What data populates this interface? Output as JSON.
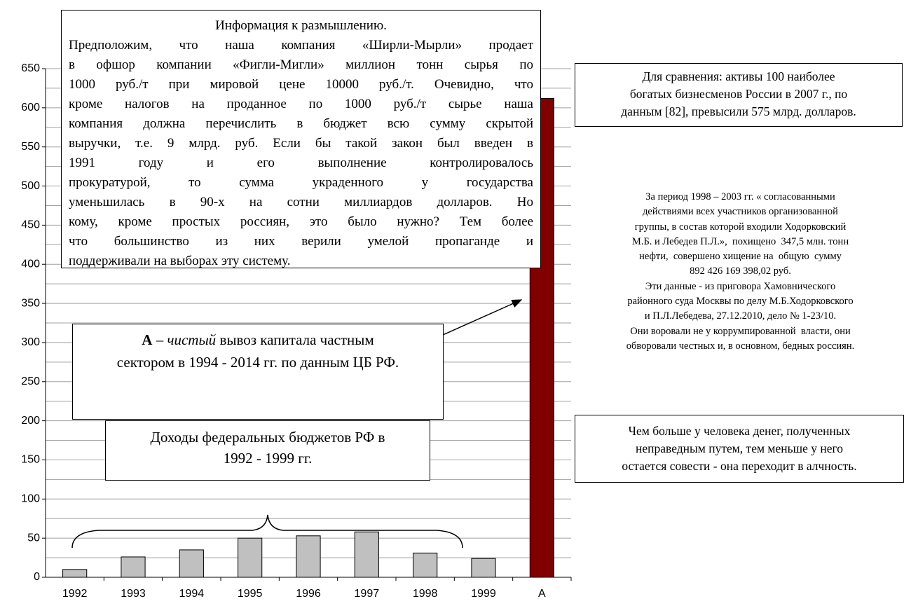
{
  "chart_data": {
    "type": "bar",
    "categories": [
      "1992",
      "1993",
      "1994",
      "1995",
      "1996",
      "1997",
      "1998",
      "1999",
      "А"
    ],
    "values": [
      10,
      26,
      35,
      50,
      53,
      58,
      31,
      24,
      612
    ],
    "colors": [
      "#c0c0c0",
      "#c0c0c0",
      "#c0c0c0",
      "#c0c0c0",
      "#c0c0c0",
      "#c0c0c0",
      "#c0c0c0",
      "#c0c0c0",
      "#800000"
    ],
    "ylim": [
      0,
      650
    ],
    "yticks": [
      0,
      50,
      100,
      150,
      200,
      250,
      300,
      350,
      400,
      450,
      500,
      550,
      600,
      650
    ],
    "minor_yticks": [
      25,
      75,
      125,
      175,
      225,
      275,
      325,
      375,
      425,
      475,
      525,
      575,
      625
    ],
    "grid": true,
    "annotations": {
      "info": {
        "title": "Информация к размышлению.",
        "lines": [
          "Предположим, что наша компания «Ширли-Мырли» продает",
          "в офшор  компании «Фигли-Мигли» миллион тонн сырья по",
          "1000 руб./т при мировой цене 10000 руб./т. Очевидно, что",
          "кроме налогов на проданное по 1000 руб./т  сырье наша",
          "компания должна перечислить в бюджет всю сумму скрытой",
          "выручки, т.е. 9 млрд. руб.  Если бы такой закон был введен в",
          "1991 году и его выполнение контролировалось",
          "прокуратурой, то сумма украденного у государства",
          "уменьшилась в  90-х на сотни миллиардов долларов. Но",
          "кому, кроме простых россиян, это было нужно? Тем более",
          "что большинство из них верили умелой пропаганде и",
          "поддерживали на выборах эту систему."
        ]
      },
      "a_note": {
        "bold": "А",
        "dash": " – ",
        "italic": "чистый",
        "rest1": " вывоз капитала частным",
        "rest2": "сектором в 1994 - 2014 гг. по данным ЦБ РФ."
      },
      "budget": [
        "Доходы федеральных бюджетов РФ в",
        "1992 - 1999 гг."
      ],
      "compare": [
        "Для сравнения: активы 100 наиболее",
        "богатых бизнесменов России в 2007 г., по",
        "данным [82], превысили 575 млрд. долларов."
      ],
      "verdict": [
        "За период 1998 – 2003 гг. « согласованными",
        "действиями всех участников организованной",
        "группы, в состав которой входили Ходорковский",
        "М.Б. и Лебедев П.Л.»,  похищено  347,5 млн. тонн",
        "нефти,  совершено хищение на  общую  сумму",
        "892 426 169 398,02 руб.",
        "Эти данные - из приговора Хамовнического",
        "районного суда Москвы по делу М.Б.Ходорковского",
        "и П.Л.Лебедева, 27.12.2010, дело № 1-23/10.",
        "Они воровали не у коррумпированной  власти, они",
        "обворовали честных и, в основном, бедных россиян."
      ],
      "conscience": [
        "Чем больше у человека денег, полученных",
        "неправедным путем, тем меньше у него",
        "остается совести - она переходит в алчность."
      ]
    }
  }
}
